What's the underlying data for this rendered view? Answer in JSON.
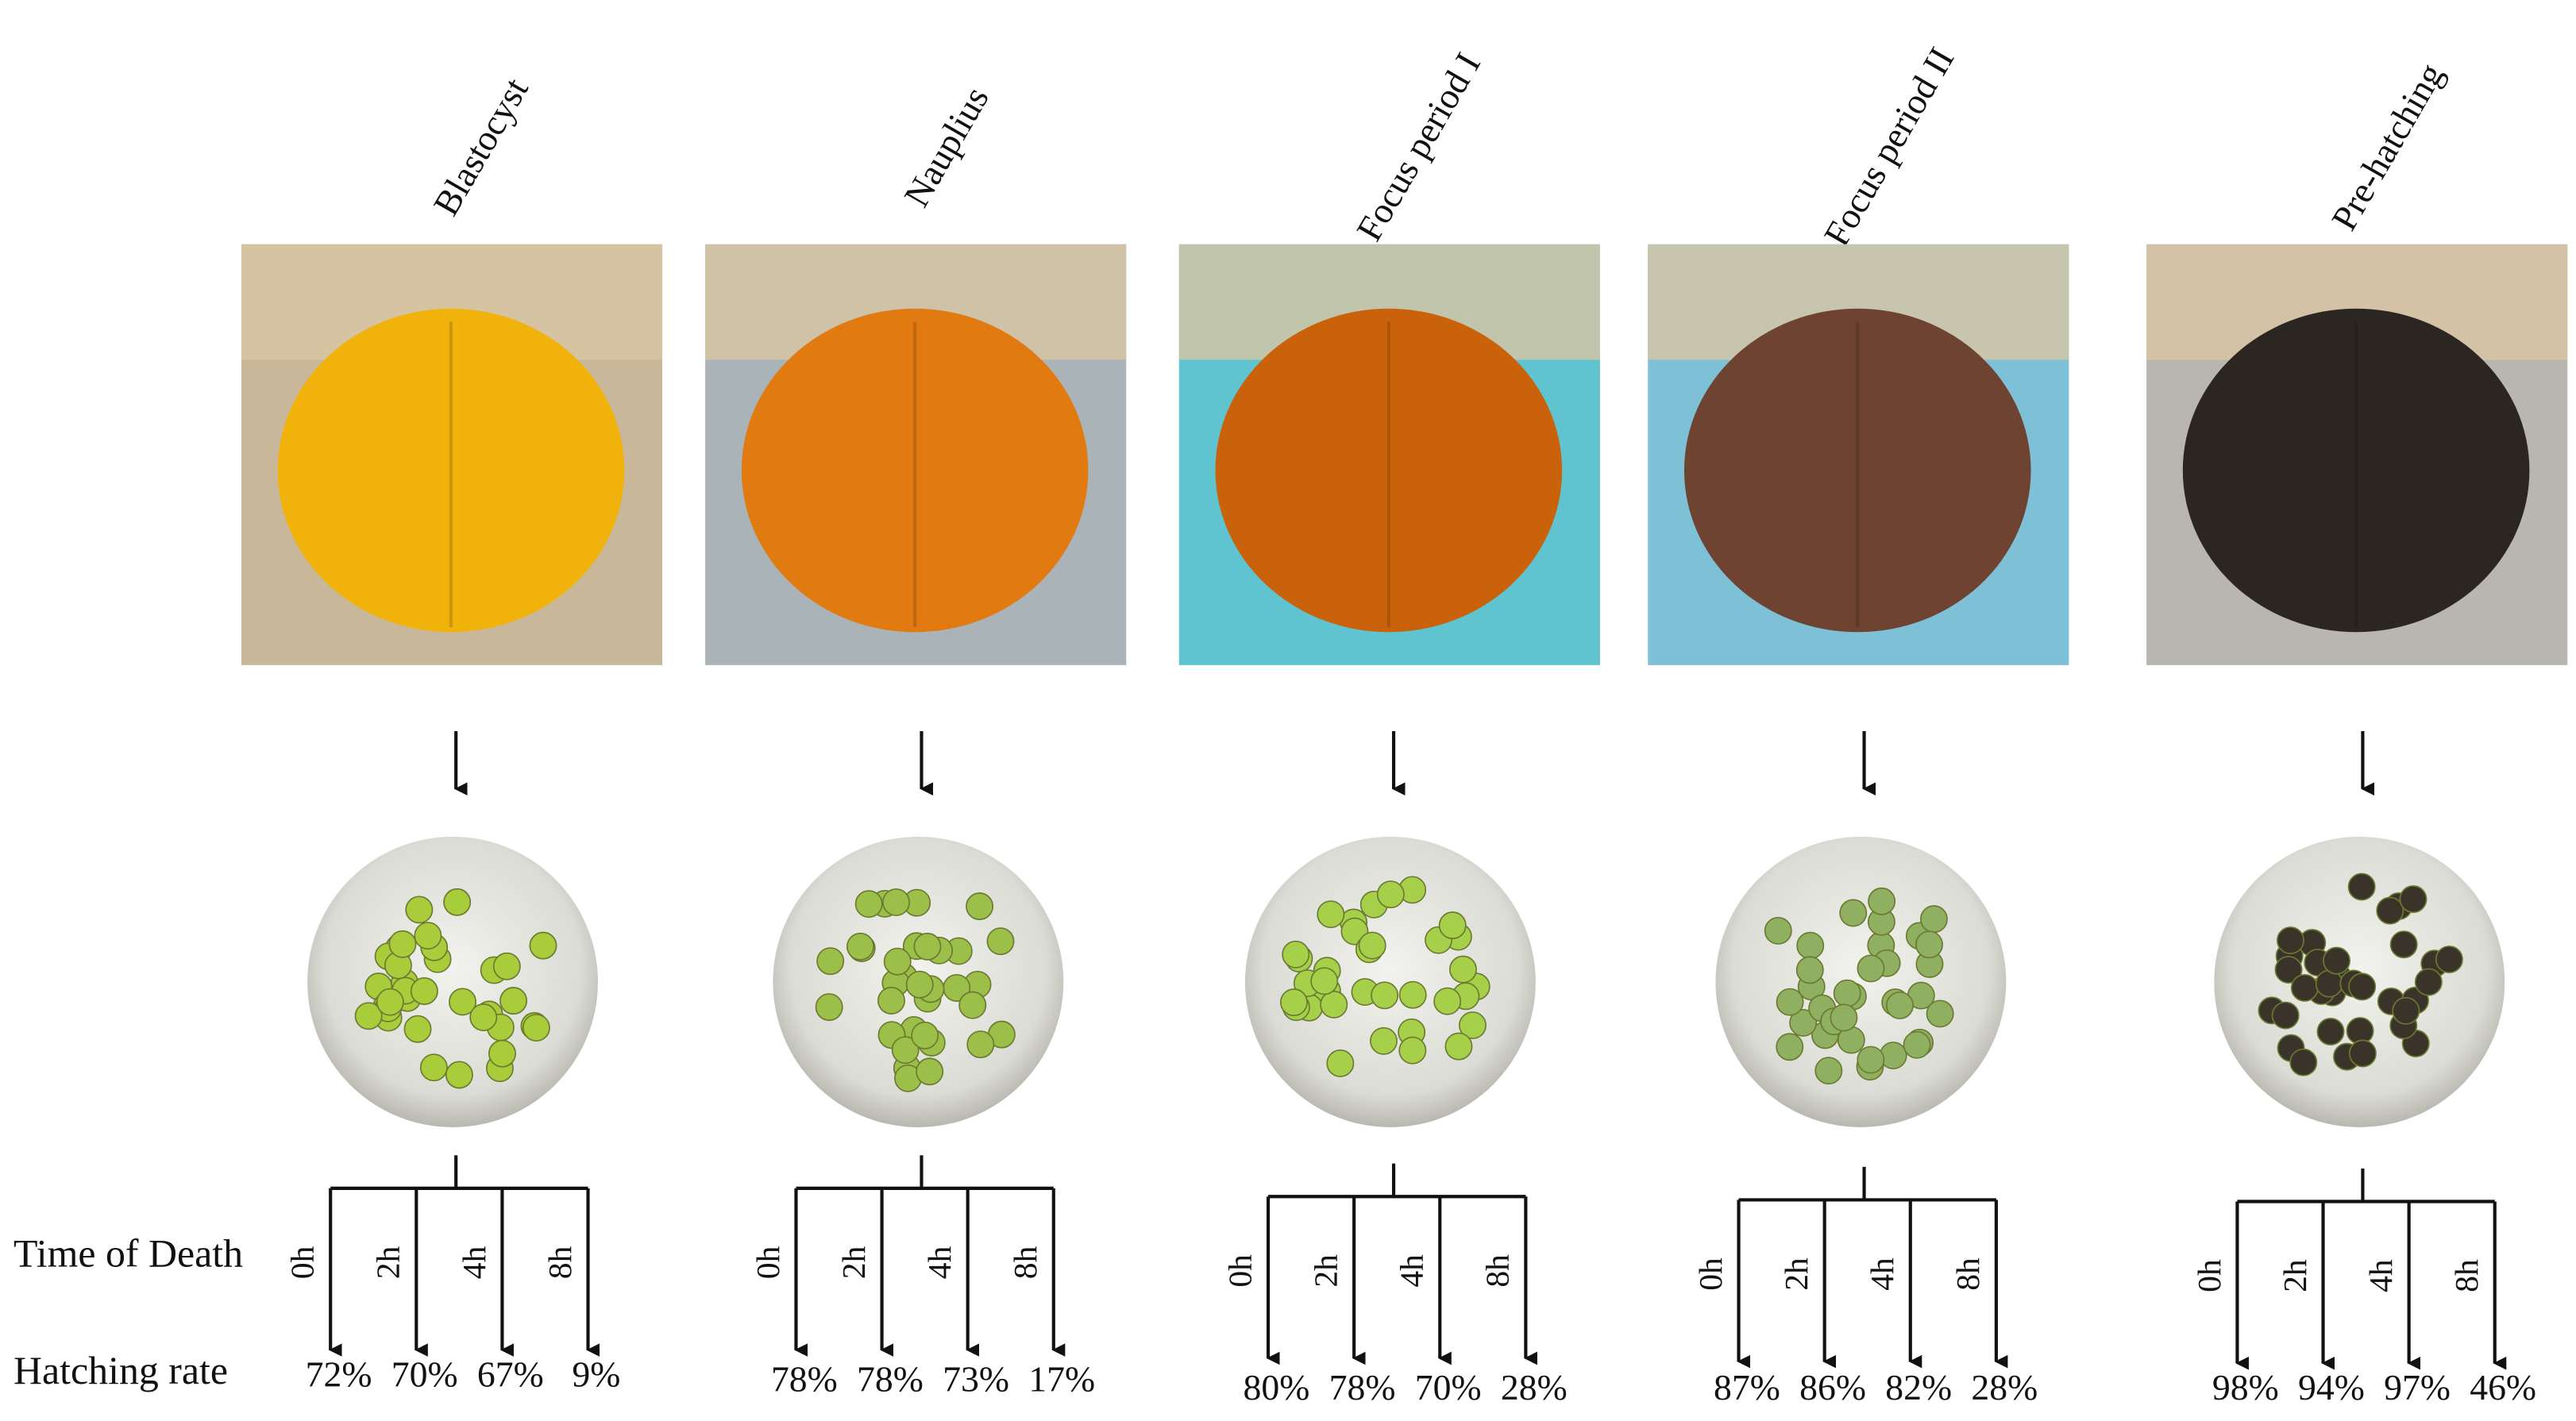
{
  "row_labels": {
    "time": "Time of Death",
    "rate": "Hatching rate"
  },
  "stages": [
    {
      "name": "Blastocyst",
      "times": [
        "0h",
        "2h",
        "4h",
        "8h"
      ],
      "rates": [
        "72%",
        "70%",
        "67%",
        "9%"
      ]
    },
    {
      "name": "Nauplius",
      "times": [
        "0h",
        "2h",
        "4h",
        "8h"
      ],
      "rates": [
        "78%",
        "78%",
        "73%",
        "17%"
      ]
    },
    {
      "name": "Focus period I",
      "times": [
        "0h",
        "2h",
        "4h",
        "8h"
      ],
      "rates": [
        "80%",
        "78%",
        "70%",
        "28%"
      ]
    },
    {
      "name": "Focus period II",
      "times": [
        "0h",
        "2h",
        "4h",
        "8h"
      ],
      "rates": [
        "87%",
        "86%",
        "82%",
        "28%"
      ]
    },
    {
      "name": "Pre-hatching",
      "times": [
        "0h",
        "2h",
        "4h",
        "8h"
      ],
      "rates": [
        "98%",
        "94%",
        "97%",
        "46%"
      ]
    }
  ]
}
